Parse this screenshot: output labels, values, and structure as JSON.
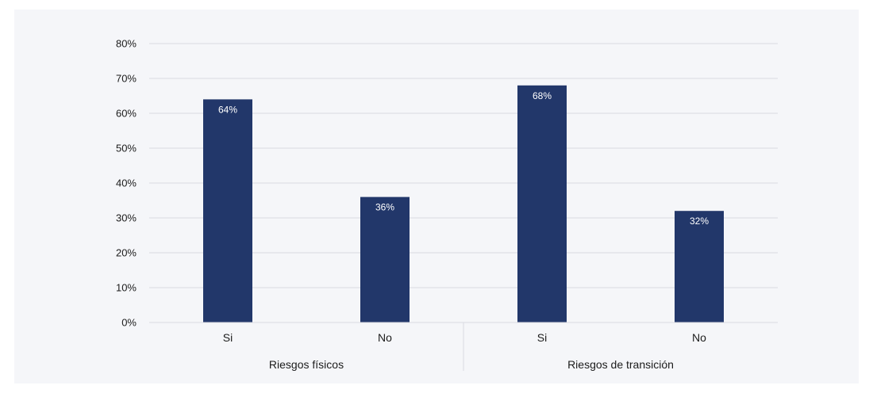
{
  "chart_data": {
    "type": "bar",
    "title": "",
    "xlabel": "",
    "ylabel": "",
    "ylim": [
      0,
      80
    ],
    "y_ticks": [
      "0%",
      "10%",
      "20%",
      "30%",
      "40%",
      "50%",
      "60%",
      "70%",
      "80%"
    ],
    "y_tick_values": [
      0,
      10,
      20,
      30,
      40,
      50,
      60,
      70,
      80
    ],
    "grid": true,
    "legend": "none",
    "groups": [
      "Riesgos físicos",
      "Riesgos de transición"
    ],
    "categories": [
      "Si",
      "No",
      "Si",
      "No"
    ],
    "category_group": [
      0,
      0,
      1,
      1
    ],
    "values": [
      64,
      36,
      68,
      32
    ],
    "data_labels": [
      "64%",
      "36%",
      "68%",
      "32%"
    ],
    "bar_color": "#22376a",
    "grid_color": "#d9dbe1"
  }
}
